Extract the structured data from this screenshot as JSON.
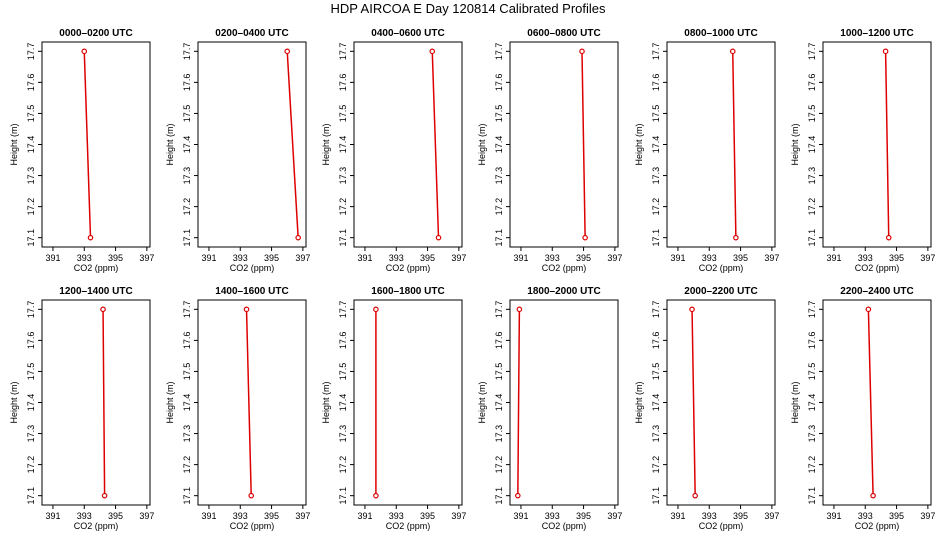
{
  "title": "HDP AIRCOA E  Day 120814  Calibrated Profiles",
  "colors": {
    "profile": "#dd0000",
    "axis": "#000000"
  },
  "chart_data": {
    "type": "line",
    "xlabel": "CO2 (ppm)",
    "ylabel": "Height (m)",
    "xlim": [
      390.3,
      397.2
    ],
    "ylim": [
      17.07,
      17.73
    ],
    "xticks": [
      "391",
      "393",
      "395",
      "397"
    ],
    "yticks": [
      "17.1",
      "17.2",
      "17.3",
      "17.4",
      "17.5",
      "17.6",
      "17.7"
    ],
    "grid": false,
    "panels": [
      {
        "title": "0000–0200 UTC",
        "points": [
          {
            "x": 393.0,
            "y": 17.7
          },
          {
            "x": 393.4,
            "y": 17.1
          }
        ]
      },
      {
        "title": "0200–0400 UTC",
        "points": [
          {
            "x": 396.0,
            "y": 17.7
          },
          {
            "x": 396.7,
            "y": 17.1
          }
        ]
      },
      {
        "title": "0400–0600 UTC",
        "points": [
          {
            "x": 395.3,
            "y": 17.7
          },
          {
            "x": 395.7,
            "y": 17.1
          }
        ]
      },
      {
        "title": "0600–0800 UTC",
        "points": [
          {
            "x": 394.9,
            "y": 17.7
          },
          {
            "x": 395.1,
            "y": 17.1
          }
        ]
      },
      {
        "title": "0800–1000 UTC",
        "points": [
          {
            "x": 394.5,
            "y": 17.7
          },
          {
            "x": 394.7,
            "y": 17.1
          }
        ]
      },
      {
        "title": "1000–1200 UTC",
        "points": [
          {
            "x": 394.3,
            "y": 17.7
          },
          {
            "x": 394.5,
            "y": 17.1
          }
        ]
      },
      {
        "title": "1200–1400 UTC",
        "points": [
          {
            "x": 394.2,
            "y": 17.7
          },
          {
            "x": 394.3,
            "y": 17.1
          }
        ]
      },
      {
        "title": "1400–1600 UTC",
        "points": [
          {
            "x": 393.4,
            "y": 17.7
          },
          {
            "x": 393.7,
            "y": 17.1
          }
        ]
      },
      {
        "title": "1600–1800 UTC",
        "points": [
          {
            "x": 391.7,
            "y": 17.7
          },
          {
            "x": 391.7,
            "y": 17.1
          }
        ]
      },
      {
        "title": "1800–2000 UTC",
        "points": [
          {
            "x": 390.9,
            "y": 17.7
          },
          {
            "x": 390.8,
            "y": 17.1
          }
        ]
      },
      {
        "title": "2000–2200 UTC",
        "points": [
          {
            "x": 391.9,
            "y": 17.7
          },
          {
            "x": 392.1,
            "y": 17.1
          }
        ]
      },
      {
        "title": "2200–2400 UTC",
        "points": [
          {
            "x": 393.2,
            "y": 17.7
          },
          {
            "x": 393.5,
            "y": 17.1
          }
        ]
      }
    ]
  }
}
